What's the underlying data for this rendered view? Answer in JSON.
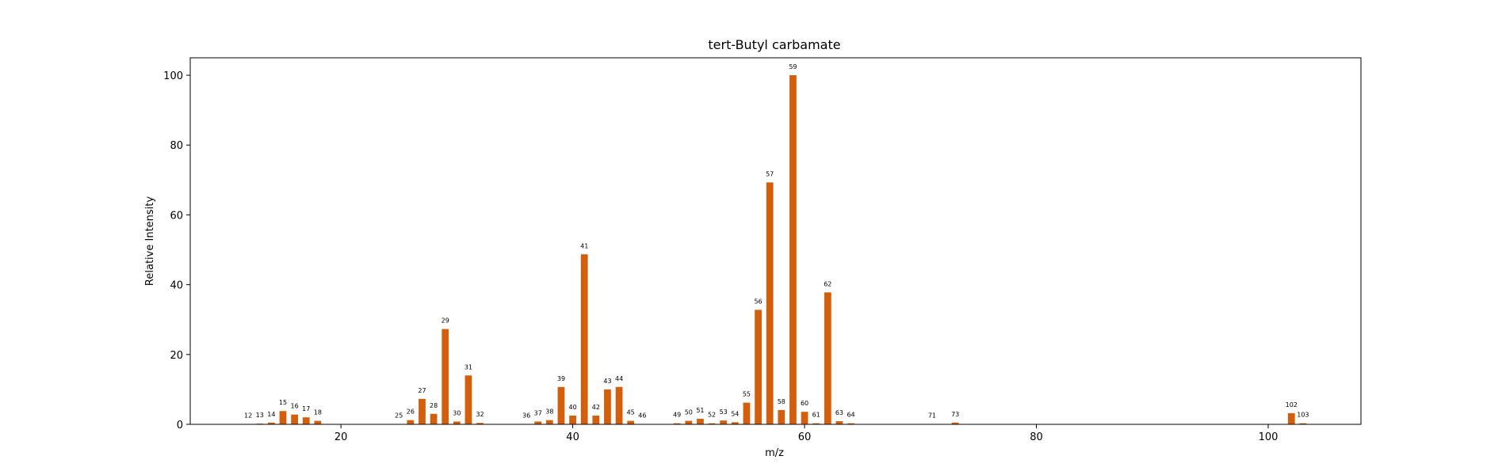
{
  "chart_data": {
    "type": "bar",
    "title": "tert-Butyl carbamate",
    "xlabel": "m/z",
    "ylabel": "Relative Intensity",
    "xlim": [
      7,
      108
    ],
    "ylim": [
      0,
      105
    ],
    "xticks": [
      20,
      40,
      60,
      80,
      100
    ],
    "yticks": [
      0,
      20,
      40,
      60,
      80,
      100
    ],
    "bar_color": "#d35f0c",
    "grid": false,
    "legend": "none",
    "x": [
      12,
      13,
      14,
      15,
      16,
      17,
      18,
      25,
      26,
      27,
      28,
      29,
      30,
      31,
      32,
      36,
      37,
      38,
      39,
      40,
      41,
      42,
      43,
      44,
      45,
      46,
      49,
      50,
      51,
      52,
      53,
      54,
      55,
      56,
      57,
      58,
      59,
      60,
      61,
      62,
      63,
      64,
      71,
      73,
      102,
      103
    ],
    "values": [
      0.1,
      0.2,
      0.5,
      3.8,
      2.8,
      2.0,
      1.0,
      0.1,
      1.2,
      7.3,
      3.0,
      27.3,
      0.8,
      14.0,
      0.4,
      0.1,
      0.8,
      1.2,
      10.7,
      2.5,
      48.7,
      2.5,
      10.0,
      10.7,
      1.0,
      0.1,
      0.3,
      1.0,
      1.6,
      0.3,
      1.1,
      0.6,
      6.2,
      32.8,
      69.3,
      4.1,
      100,
      3.6,
      0.3,
      37.8,
      0.9,
      0.3,
      0.1,
      0.5,
      3.2,
      0.3
    ]
  }
}
